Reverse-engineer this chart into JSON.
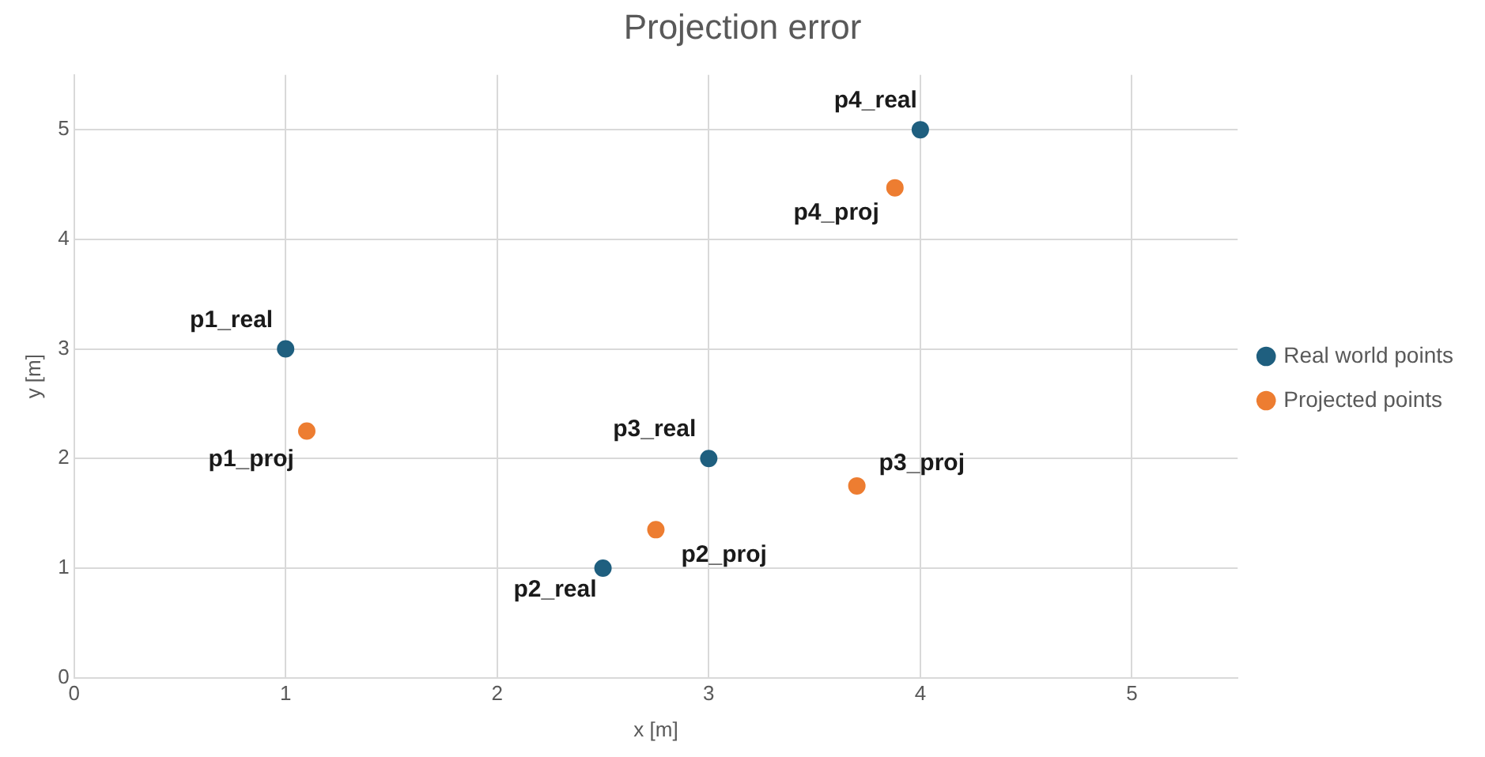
{
  "chart_data": {
    "type": "scatter",
    "title": "Projection error",
    "xlabel": "x [m]",
    "ylabel": "y [m]",
    "xlim": [
      0,
      5.5
    ],
    "xticks": [
      0,
      1,
      2,
      3,
      4,
      5
    ],
    "ylim": [
      0,
      5.5
    ],
    "yticks": [
      0,
      1,
      2,
      3,
      4,
      5
    ],
    "grid": true,
    "legend": "right",
    "marker": "circle",
    "series": [
      {
        "name": "Real world points",
        "color": "#1f5f7f",
        "x": [
          1,
          2.5,
          3,
          4
        ],
        "values": [
          3,
          1,
          2,
          5
        ],
        "value_labels": [
          "p1_real",
          "p2_real",
          "p3_real",
          "p4_real"
        ]
      },
      {
        "name": "Projected points",
        "color": "#ed7d31",
        "x": [
          1.1,
          2.75,
          3.7,
          3.88
        ],
        "values": [
          2.25,
          1.35,
          1.75,
          4.47
        ],
        "value_labels": [
          "p1_proj",
          "p2_proj",
          "p3_proj",
          "p4_proj"
        ]
      }
    ]
  }
}
